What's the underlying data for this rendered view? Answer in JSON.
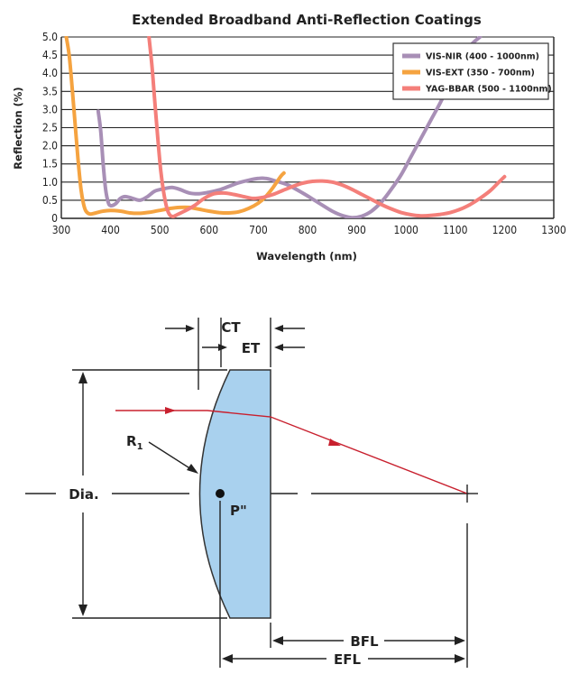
{
  "chart_data": {
    "type": "line",
    "title": "Extended Broadband Anti-Reflection Coatings",
    "xlabel": "Wavelength (nm)",
    "ylabel": "Reflection (%)",
    "xlim": [
      300,
      1300
    ],
    "ylim": [
      0,
      5.0
    ],
    "xticks": [
      "300",
      "400",
      "500",
      "600",
      "700",
      "800",
      "900",
      "1000",
      "1100",
      "1200",
      "1300"
    ],
    "yticks": [
      "0",
      "0.5",
      "1.0",
      "1.5",
      "2.0",
      "2.5",
      "3.0",
      "3.5",
      "4.0",
      "4.5",
      "5.0"
    ],
    "grid": "horizontal",
    "legend_position": "top-right",
    "series": [
      {
        "name": "VIS-NIR (400 - 1000nm)",
        "color": "#a88fb6",
        "points": [
          [
            375,
            2.95
          ],
          [
            380,
            2.4
          ],
          [
            385,
            1.5
          ],
          [
            390,
            0.8
          ],
          [
            395,
            0.45
          ],
          [
            400,
            0.35
          ],
          [
            410,
            0.4
          ],
          [
            420,
            0.55
          ],
          [
            430,
            0.6
          ],
          [
            445,
            0.55
          ],
          [
            460,
            0.5
          ],
          [
            475,
            0.6
          ],
          [
            490,
            0.75
          ],
          [
            510,
            0.82
          ],
          [
            525,
            0.85
          ],
          [
            540,
            0.8
          ],
          [
            560,
            0.7
          ],
          [
            580,
            0.68
          ],
          [
            600,
            0.72
          ],
          [
            620,
            0.78
          ],
          [
            640,
            0.88
          ],
          [
            660,
            0.98
          ],
          [
            680,
            1.05
          ],
          [
            700,
            1.1
          ],
          [
            715,
            1.1
          ],
          [
            730,
            1.05
          ],
          [
            760,
            0.92
          ],
          [
            790,
            0.7
          ],
          [
            820,
            0.45
          ],
          [
            850,
            0.2
          ],
          [
            870,
            0.08
          ],
          [
            890,
            0.02
          ],
          [
            910,
            0.06
          ],
          [
            930,
            0.2
          ],
          [
            950,
            0.45
          ],
          [
            970,
            0.8
          ],
          [
            990,
            1.2
          ],
          [
            1010,
            1.7
          ],
          [
            1030,
            2.2
          ],
          [
            1050,
            2.7
          ],
          [
            1070,
            3.2
          ],
          [
            1090,
            3.75
          ],
          [
            1110,
            4.3
          ],
          [
            1130,
            4.75
          ],
          [
            1150,
            5.0
          ]
        ]
      },
      {
        "name": "VIS-EXT (350 - 700nm)",
        "color": "#f5a340",
        "points": [
          [
            310,
            5.0
          ],
          [
            316,
            4.5
          ],
          [
            322,
            3.6
          ],
          [
            328,
            2.6
          ],
          [
            334,
            1.6
          ],
          [
            340,
            0.8
          ],
          [
            345,
            0.4
          ],
          [
            350,
            0.2
          ],
          [
            358,
            0.12
          ],
          [
            370,
            0.15
          ],
          [
            385,
            0.2
          ],
          [
            400,
            0.22
          ],
          [
            420,
            0.2
          ],
          [
            440,
            0.15
          ],
          [
            460,
            0.14
          ],
          [
            480,
            0.17
          ],
          [
            500,
            0.22
          ],
          [
            520,
            0.27
          ],
          [
            540,
            0.3
          ],
          [
            560,
            0.3
          ],
          [
            580,
            0.25
          ],
          [
            600,
            0.2
          ],
          [
            620,
            0.16
          ],
          [
            640,
            0.15
          ],
          [
            660,
            0.18
          ],
          [
            680,
            0.27
          ],
          [
            700,
            0.42
          ],
          [
            715,
            0.6
          ],
          [
            730,
            0.85
          ],
          [
            745,
            1.15
          ],
          [
            752,
            1.25
          ]
        ]
      },
      {
        "name": "YAG-BBAR (500 - 1100nm)",
        "color": "#f47f7a",
        "points": [
          [
            478,
            5.0
          ],
          [
            484,
            4.2
          ],
          [
            490,
            3.2
          ],
          [
            496,
            2.2
          ],
          [
            502,
            1.3
          ],
          [
            508,
            0.7
          ],
          [
            514,
            0.3
          ],
          [
            520,
            0.1
          ],
          [
            527,
            0.05
          ],
          [
            535,
            0.1
          ],
          [
            550,
            0.2
          ],
          [
            570,
            0.35
          ],
          [
            590,
            0.55
          ],
          [
            610,
            0.68
          ],
          [
            630,
            0.7
          ],
          [
            650,
            0.66
          ],
          [
            670,
            0.6
          ],
          [
            690,
            0.55
          ],
          [
            710,
            0.58
          ],
          [
            730,
            0.66
          ],
          [
            750,
            0.77
          ],
          [
            770,
            0.88
          ],
          [
            790,
            0.97
          ],
          [
            810,
            1.02
          ],
          [
            830,
            1.03
          ],
          [
            850,
            1.0
          ],
          [
            870,
            0.92
          ],
          [
            890,
            0.8
          ],
          [
            910,
            0.66
          ],
          [
            930,
            0.52
          ],
          [
            950,
            0.38
          ],
          [
            970,
            0.26
          ],
          [
            990,
            0.16
          ],
          [
            1010,
            0.1
          ],
          [
            1030,
            0.07
          ],
          [
            1050,
            0.08
          ],
          [
            1070,
            0.11
          ],
          [
            1090,
            0.16
          ],
          [
            1110,
            0.25
          ],
          [
            1130,
            0.38
          ],
          [
            1150,
            0.55
          ],
          [
            1170,
            0.75
          ],
          [
            1185,
            0.95
          ],
          [
            1200,
            1.15
          ]
        ]
      }
    ]
  },
  "diagram": {
    "labels": {
      "ct": "CT",
      "et": "ET",
      "r1_main": "R",
      "r1_sub": "1",
      "dia": "Dia.",
      "p": "P\"",
      "bfl": "BFL",
      "efl": "EFL"
    },
    "colors": {
      "lens_fill": "#a9d1ee",
      "lens_stroke": "#333333",
      "ray": "#c8202e"
    }
  }
}
